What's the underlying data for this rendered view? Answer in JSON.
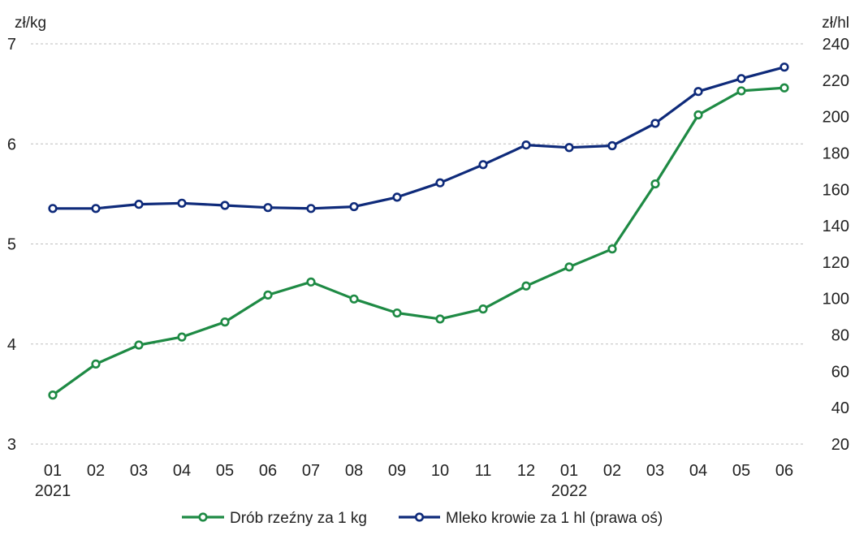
{
  "chart_data": {
    "type": "line",
    "categories": [
      "01",
      "02",
      "03",
      "04",
      "05",
      "06",
      "07",
      "08",
      "09",
      "10",
      "11",
      "12",
      "01",
      "02",
      "03",
      "04",
      "05",
      "06"
    ],
    "year_labels": [
      {
        "index": 0,
        "label": "2021"
      },
      {
        "index": 12,
        "label": "2022"
      }
    ],
    "y_left": {
      "label": "zł/kg",
      "min": 3,
      "max": 7,
      "ticks": [
        3,
        4,
        5,
        6,
        7
      ]
    },
    "y_right": {
      "label": "zł/hl",
      "min": 20,
      "max": 240,
      "ticks": [
        20,
        40,
        60,
        80,
        100,
        120,
        140,
        160,
        180,
        200,
        220,
        240
      ]
    },
    "grid": true,
    "legend_position": "bottom",
    "series": [
      {
        "name": "Drób rzeźny za 1 kg",
        "axis": "left",
        "color": "#1e8a44",
        "values": [
          3.49,
          3.8,
          3.99,
          4.07,
          4.22,
          4.49,
          4.62,
          4.45,
          4.31,
          4.25,
          4.35,
          4.58,
          4.77,
          4.95,
          5.6,
          6.29,
          6.53,
          6.56
        ]
      },
      {
        "name": "Mleko krowie za 1 hl (prawa oś)",
        "axis": "right",
        "color": "#0e2a7a",
        "values": [
          149.5,
          149.5,
          151.8,
          152.4,
          151.2,
          150.0,
          149.5,
          150.5,
          155.7,
          163.6,
          173.6,
          184.4,
          183.0,
          184.0,
          196.3,
          213.8,
          220.9,
          227.2
        ]
      }
    ]
  }
}
